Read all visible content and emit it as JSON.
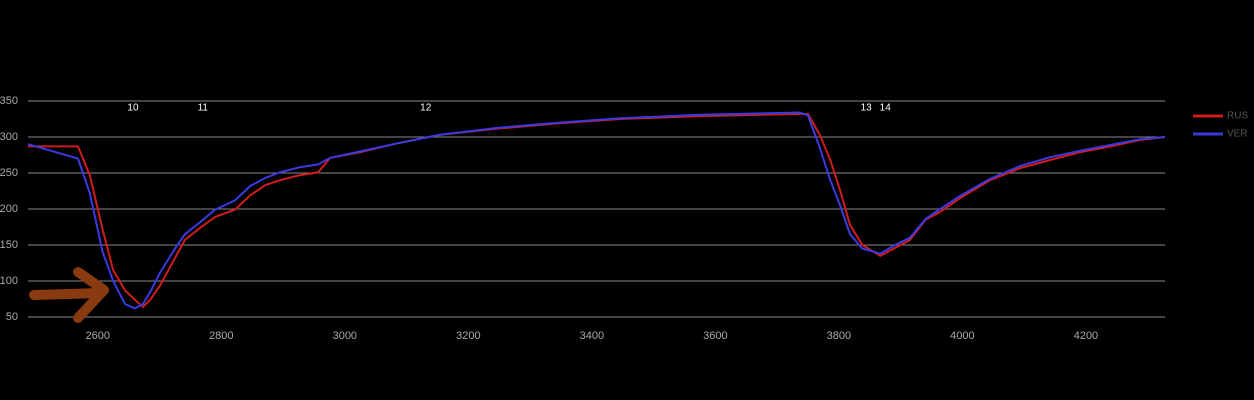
{
  "chart_data": {
    "type": "line",
    "x": [
      2487,
      2568,
      2587,
      2608,
      2625,
      2644,
      2660,
      2673,
      2685,
      2701,
      2725,
      2741,
      2766,
      2790,
      2822,
      2847,
      2871,
      2895,
      2927,
      2957,
      2976,
      3025,
      3089,
      3154,
      3251,
      3348,
      3446,
      3575,
      3737,
      3750,
      3769,
      3786,
      3802,
      3818,
      3838,
      3867,
      3891,
      3915,
      3940,
      3964,
      3996,
      4045,
      4094,
      4142,
      4191,
      4240,
      4288,
      4328
    ],
    "series": [
      {
        "name": "RUS",
        "color": "#d01c1c",
        "values": [
          287,
          287,
          247,
          171,
          115,
          87,
          74,
          64,
          74,
          94,
          132,
          157,
          174,
          189,
          199,
          219,
          233,
          240,
          247,
          251,
          271,
          279,
          292,
          303,
          312,
          319,
          325,
          329,
          332,
          332,
          303,
          268,
          226,
          178,
          150,
          135,
          146,
          157,
          185,
          196,
          215,
          240,
          257,
          268,
          279,
          287,
          296,
          300
        ]
      },
      {
        "name": "VER",
        "color": "#3a3ae0",
        "values": [
          290,
          270,
          222,
          140,
          100,
          68,
          62,
          68,
          85,
          112,
          145,
          165,
          182,
          199,
          212,
          232,
          243,
          251,
          258,
          262,
          271,
          280,
          292,
          303,
          313,
          320,
          326,
          331,
          334,
          330,
          285,
          240,
          205,
          165,
          145,
          138,
          150,
          160,
          186,
          200,
          218,
          242,
          260,
          272,
          281,
          289,
          297,
          300
        ]
      }
    ],
    "xlim": [
      2487,
      4328
    ],
    "xticks": [
      2600,
      2800,
      3000,
      3200,
      3400,
      3600,
      3800,
      4000,
      4200
    ],
    "ylim": [
      50,
      350
    ],
    "yticks": [
      50,
      100,
      150,
      200,
      250,
      300,
      350
    ],
    "grid": true,
    "legend": "right",
    "annotations": [
      {
        "text": "10",
        "x": 2657
      },
      {
        "text": "11",
        "x": 2770
      },
      {
        "text": "12",
        "x": 3131
      },
      {
        "text": "13",
        "x": 3844
      },
      {
        "text": "14",
        "x": 3875
      }
    ]
  }
}
